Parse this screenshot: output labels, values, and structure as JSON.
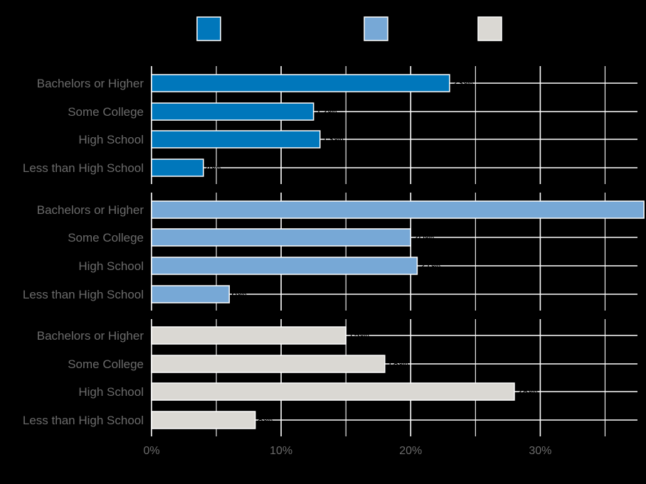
{
  "chart_data": {
    "type": "bar",
    "orientation": "horizontal",
    "categories": [
      "Bachelors or Higher",
      "Some College",
      "High School",
      "Less than High School"
    ],
    "series": [
      {
        "color": "#0077bb",
        "values": [
          23,
          12.5,
          13,
          4
        ],
        "labels": [
          "23%",
          "12%",
          "13%",
          "4%"
        ]
      },
      {
        "color": "#77a8d6",
        "values": [
          38,
          20,
          20.5,
          6
        ],
        "labels": [
          "",
          "20%",
          "21%",
          "6%"
        ]
      },
      {
        "color": "#dad8d3",
        "values": [
          15,
          18,
          28,
          8
        ],
        "labels": [
          "15%",
          "18%",
          "28%",
          "8%"
        ]
      }
    ],
    "x_ticks": [
      "0%",
      "10%",
      "20%",
      "30%"
    ],
    "x_tick_values": [
      0,
      10,
      20,
      30
    ],
    "xlim": [
      0,
      37.5
    ],
    "legend": "top",
    "grid": true,
    "colors": {
      "background": "#000000",
      "grid": "#ffffff",
      "text": "#6b6b6b",
      "value_label": "#000000"
    }
  }
}
